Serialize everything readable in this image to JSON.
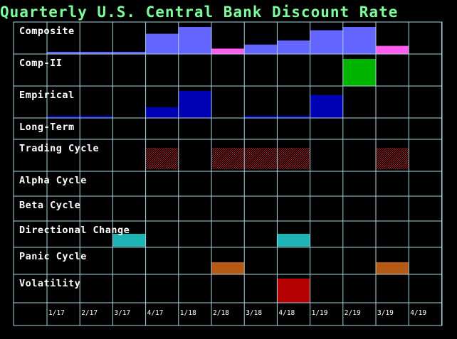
{
  "title": "Quarterly U.S. Central Bank Discount Rate",
  "colors": {
    "background": "#000000",
    "grid": "#a9d3df",
    "title": "#7CFF9A",
    "composite": "#6464ff",
    "composite_high": "#ff5cf0",
    "comp_ii": "#00b400",
    "empirical": "#0000b4",
    "trading_hatch": "#c81e1e",
    "directional": "#1eb4b4",
    "panic": "#b45a14",
    "volatility": "#b40000"
  },
  "chart_data": {
    "type": "heatmap",
    "title": "Quarterly U.S. Central Bank Discount Rate",
    "categories": [
      "1/17",
      "2/17",
      "3/17",
      "4/17",
      "1/18",
      "2/18",
      "3/18",
      "4/18",
      "1/19",
      "2/19",
      "3/19",
      "4/19"
    ],
    "rows": [
      {
        "label": "Composite",
        "kind": "bar",
        "values": [
          0.08,
          0.08,
          0.08,
          0.75,
          1.0,
          0.2,
          0.35,
          0.5,
          0.88,
          1.0,
          0.3,
          0
        ],
        "highlight": [
          5,
          10
        ]
      },
      {
        "label": "Comp-II",
        "kind": "block",
        "values": [
          0,
          0,
          0,
          0,
          0,
          0,
          0,
          0,
          0,
          1,
          0,
          0
        ]
      },
      {
        "label": "Empirical",
        "kind": "bar",
        "values": [
          0.08,
          0.08,
          0,
          0.4,
          1.0,
          0,
          0.08,
          0.08,
          0.85,
          0,
          0,
          0
        ]
      },
      {
        "label": "Long-Term",
        "kind": "block",
        "values": [
          0,
          0,
          0,
          0,
          0,
          0,
          0,
          0,
          0,
          0,
          0,
          0
        ]
      },
      {
        "label": "Trading Cycle",
        "kind": "hatch",
        "values": [
          0,
          0,
          0,
          1,
          0,
          1,
          1,
          1,
          0,
          0,
          1,
          0
        ]
      },
      {
        "label": "Alpha Cycle",
        "kind": "block",
        "values": [
          0,
          0,
          0,
          0,
          0,
          0,
          0,
          0,
          0,
          0,
          0,
          0
        ]
      },
      {
        "label": "Beta Cycle",
        "kind": "block",
        "values": [
          0,
          0,
          0,
          0,
          0,
          0,
          0,
          0,
          0,
          0,
          0,
          0
        ]
      },
      {
        "label": "Directional Change",
        "kind": "block",
        "values": [
          0,
          0,
          1,
          0,
          0,
          0,
          0,
          1,
          0,
          0,
          0,
          0
        ]
      },
      {
        "label": "Panic Cycle",
        "kind": "block",
        "values": [
          0,
          0,
          0,
          0,
          0,
          1,
          0,
          0,
          0,
          0,
          1,
          0
        ]
      },
      {
        "label": "Volatility",
        "kind": "block",
        "values": [
          0,
          0,
          0,
          0,
          0,
          0,
          0,
          1,
          0,
          0,
          0,
          0
        ]
      }
    ],
    "grid": true
  }
}
